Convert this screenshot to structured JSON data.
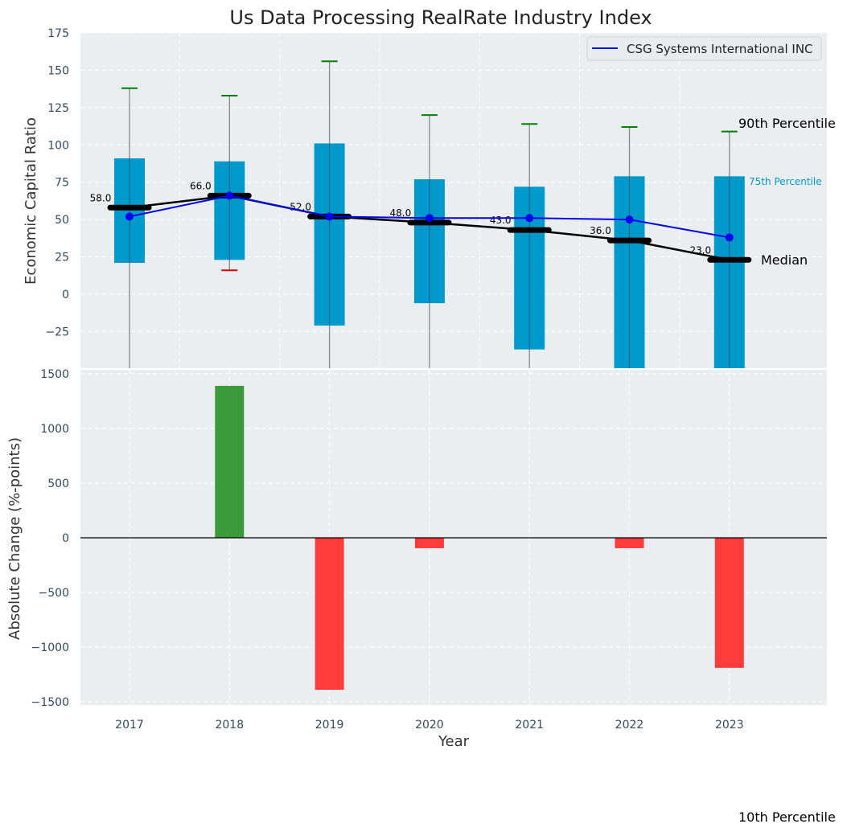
{
  "chart_data": [
    {
      "type": "box-line",
      "title": "Us Data Processing RealRate Industry Index",
      "xlabel": "",
      "ylabel": "Economic Capital Ratio",
      "ylim": [
        -50,
        175
      ],
      "yticks": [
        -25,
        0,
        25,
        50,
        75,
        100,
        125,
        150,
        175
      ],
      "ytick_labels": [
        "−25",
        "0",
        "25",
        "50",
        "75",
        "100",
        "125",
        "150",
        "175"
      ],
      "grid": true,
      "legend": {
        "position": "top-right",
        "entries": [
          "CSG Systems International INC"
        ]
      },
      "categories": [
        "2017",
        "2018",
        "2019",
        "2020",
        "2021",
        "2022",
        "2023"
      ],
      "p25": [
        21,
        23,
        -21,
        -6,
        -37,
        -50,
        -50
      ],
      "p75": [
        91,
        89,
        101,
        77,
        72,
        79,
        79
      ],
      "median": [
        58,
        66,
        52,
        48,
        43,
        36,
        23
      ],
      "median_labels": [
        "58.0",
        "66.0",
        "52.0",
        "48.0",
        "43.0",
        "36.0",
        "23.0"
      ],
      "p90": [
        138,
        133,
        156,
        120,
        114,
        112,
        109
      ],
      "p10": [
        null,
        16,
        null,
        null,
        null,
        null,
        null
      ],
      "series": [
        {
          "name": "CSG Systems International INC",
          "values": [
            52,
            66,
            52,
            51,
            51,
            50,
            38
          ]
        }
      ],
      "annotations": {
        "p90": "90th Percentile",
        "p75": "75th Percentile",
        "median": "Median",
        "p10": "10th Percentile"
      },
      "colors": {
        "box": "#0099cc",
        "median": "#000000",
        "series": "#0000ee",
        "p90_cap": "#008000",
        "p10_cap": "#dd0000",
        "whisker": "#888888",
        "background": "#eaeef0",
        "p75_label": "#0099cc"
      }
    },
    {
      "type": "bar",
      "xlabel": "Year",
      "ylabel": "Absolute Change (%-points)",
      "ylim": [
        -1500,
        1500
      ],
      "yticks": [
        -1500,
        -1000,
        -500,
        0,
        500,
        1000,
        1500
      ],
      "ytick_labels": [
        "−1500",
        "−1000",
        "−500",
        "0",
        "500",
        "1000",
        "1500"
      ],
      "grid": true,
      "categories": [
        "2017",
        "2018",
        "2019",
        "2020",
        "2021",
        "2022",
        "2023"
      ],
      "values": [
        0,
        1390,
        -1390,
        -95,
        0,
        -95,
        -1190
      ],
      "colors": {
        "positive": "#3a9a3a",
        "negative": "#ff3b3b",
        "zero_line": "#000000"
      }
    }
  ]
}
